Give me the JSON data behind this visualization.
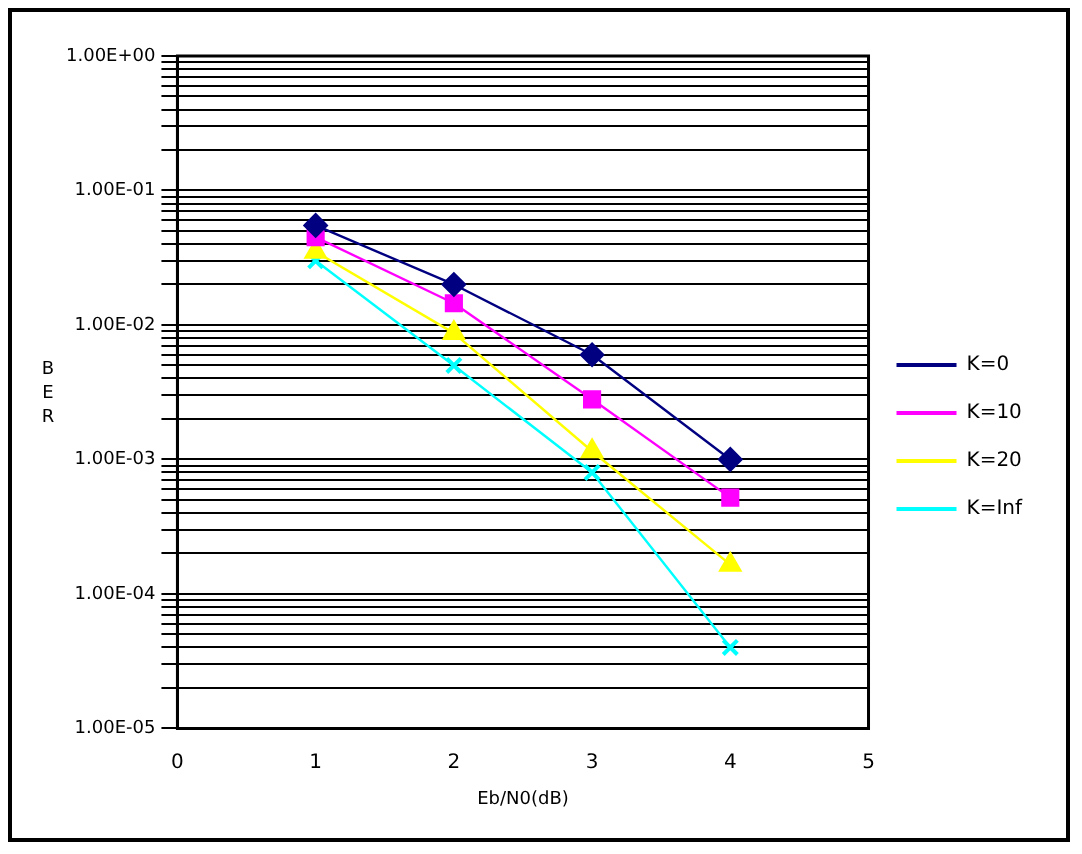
{
  "chart_data": {
    "type": "line",
    "xlabel": "Eb/N0(dB)",
    "ylabel": "BER",
    "x": [
      1,
      2,
      3,
      4
    ],
    "xlim": [
      0,
      5
    ],
    "xticks": [
      0,
      1,
      2,
      3,
      4,
      5
    ],
    "ylim": [
      1e-05,
      1
    ],
    "log": "y",
    "grid": "y",
    "legend": "right",
    "line_style": "solid",
    "yticks": [
      {
        "value": 1e-05,
        "label": "1.00E-05"
      },
      {
        "value": 2e-05,
        "label": null
      },
      {
        "value": 3e-05,
        "label": null
      },
      {
        "value": 4e-05,
        "label": null
      },
      {
        "value": 5e-05,
        "label": null
      },
      {
        "value": 6e-05,
        "label": null
      },
      {
        "value": 7e-05,
        "label": null
      },
      {
        "value": 8e-05,
        "label": null
      },
      {
        "value": 9e-05,
        "label": null
      },
      {
        "value": 0.0001,
        "label": "1.00E-04"
      },
      {
        "value": 0.0002,
        "label": null
      },
      {
        "value": 0.0003,
        "label": null
      },
      {
        "value": 0.0004,
        "label": null
      },
      {
        "value": 0.0005,
        "label": null
      },
      {
        "value": 0.0006,
        "label": null
      },
      {
        "value": 0.0007,
        "label": null
      },
      {
        "value": 0.0008,
        "label": null
      },
      {
        "value": 0.0009,
        "label": null
      },
      {
        "value": 0.001,
        "label": "1.00E-03"
      },
      {
        "value": 0.002,
        "label": null
      },
      {
        "value": 0.003,
        "label": null
      },
      {
        "value": 0.004,
        "label": null
      },
      {
        "value": 0.005,
        "label": null
      },
      {
        "value": 0.006,
        "label": null
      },
      {
        "value": 0.007,
        "label": null
      },
      {
        "value": 0.008,
        "label": null
      },
      {
        "value": 0.009,
        "label": null
      },
      {
        "value": 0.01,
        "label": "1.00E-02"
      },
      {
        "value": 0.02,
        "label": null
      },
      {
        "value": 0.03,
        "label": null
      },
      {
        "value": 0.04,
        "label": null
      },
      {
        "value": 0.05,
        "label": null
      },
      {
        "value": 0.06,
        "label": null
      },
      {
        "value": 0.07,
        "label": null
      },
      {
        "value": 0.08,
        "label": null
      },
      {
        "value": 0.09,
        "label": null
      },
      {
        "value": 0.1,
        "label": "1.00E-01"
      },
      {
        "value": 0.2,
        "label": null
      },
      {
        "value": 0.3,
        "label": null
      },
      {
        "value": 0.4,
        "label": null
      },
      {
        "value": 0.5,
        "label": null
      },
      {
        "value": 0.6,
        "label": null
      },
      {
        "value": 0.7,
        "label": null
      },
      {
        "value": 0.8,
        "label": null
      },
      {
        "value": 0.9,
        "label": null
      },
      {
        "value": 1,
        "label": "1.00E+00"
      }
    ],
    "series": [
      {
        "name": "K=0",
        "color": "#000080",
        "marker": "diamond",
        "values": [
          0.055,
          0.02,
          0.006,
          0.001
        ]
      },
      {
        "name": "K=10",
        "color": "#ff00ff",
        "marker": "square",
        "values": [
          0.045,
          0.0145,
          0.0028,
          0.00052
        ]
      },
      {
        "name": "K=20",
        "color": "#ffff00",
        "marker": "triangle",
        "values": [
          0.035,
          0.0087,
          0.00115,
          0.000165
        ]
      },
      {
        "name": "K=Inf",
        "color": "#00ffff",
        "marker": "cross",
        "values": [
          0.03,
          0.005,
          0.0008,
          4e-05
        ]
      }
    ]
  }
}
